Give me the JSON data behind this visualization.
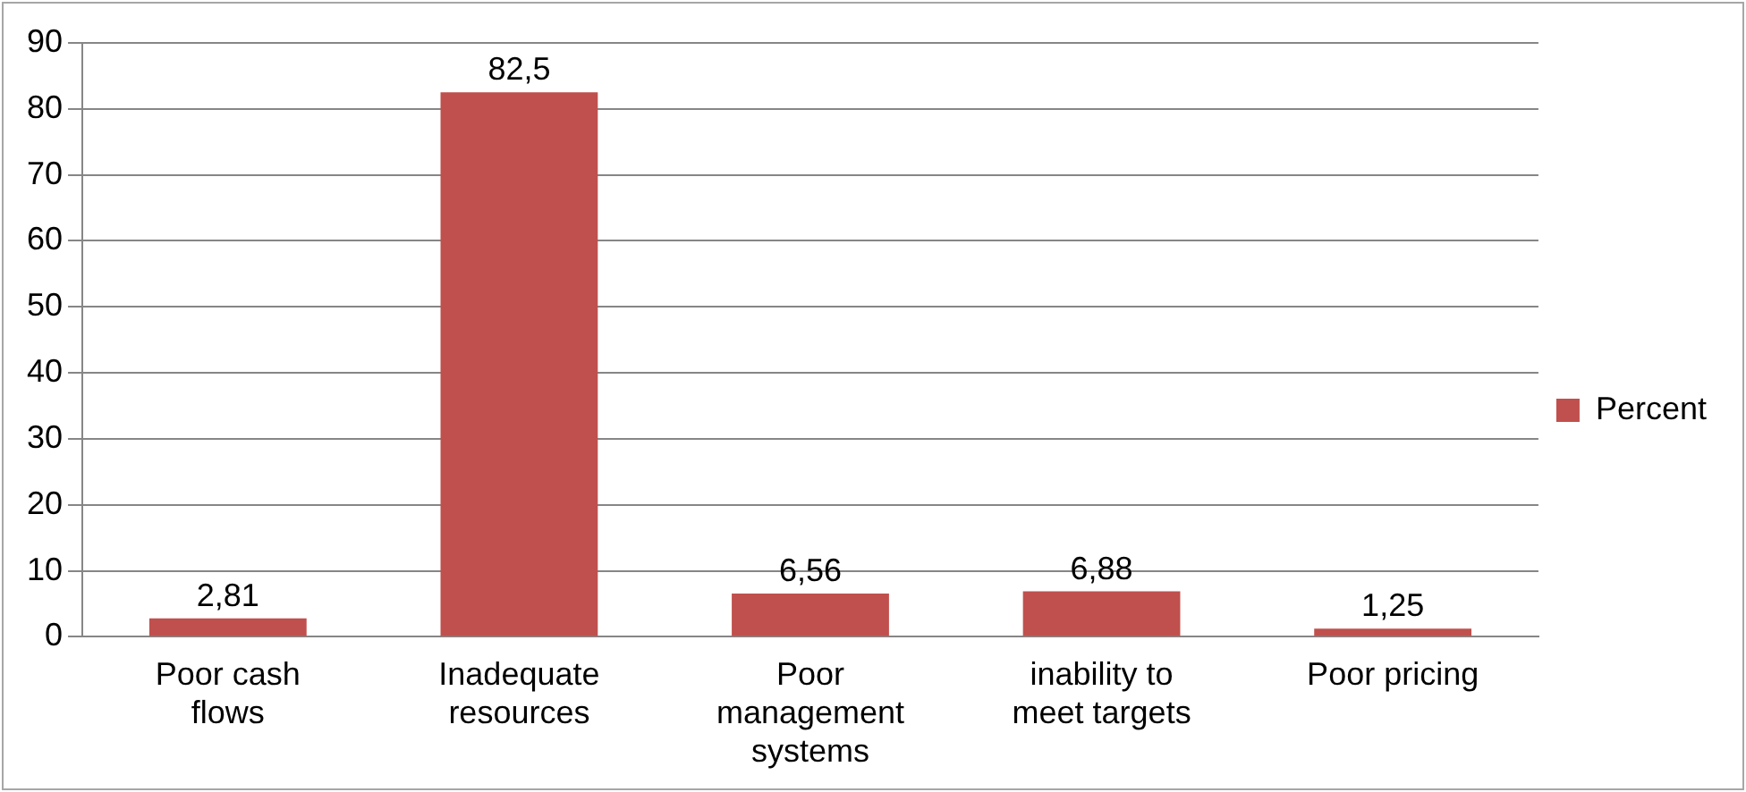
{
  "chart_data": {
    "type": "bar",
    "categories": [
      "Poor cash flows",
      "Inadequate resources",
      "Poor management systems",
      "inability to meet targets",
      "Poor pricing"
    ],
    "series": [
      {
        "name": "Percent",
        "color": "#c0504d",
        "values": [
          2.81,
          82.5,
          6.56,
          6.88,
          1.25
        ],
        "value_labels": [
          "2,81",
          "82,5",
          "6,56",
          "6,88",
          "1,25"
        ]
      }
    ],
    "ylim": [
      0,
      90
    ],
    "yticks": [
      0,
      10,
      20,
      30,
      40,
      50,
      60,
      70,
      80,
      90
    ],
    "grid": "y",
    "legend": "right"
  }
}
